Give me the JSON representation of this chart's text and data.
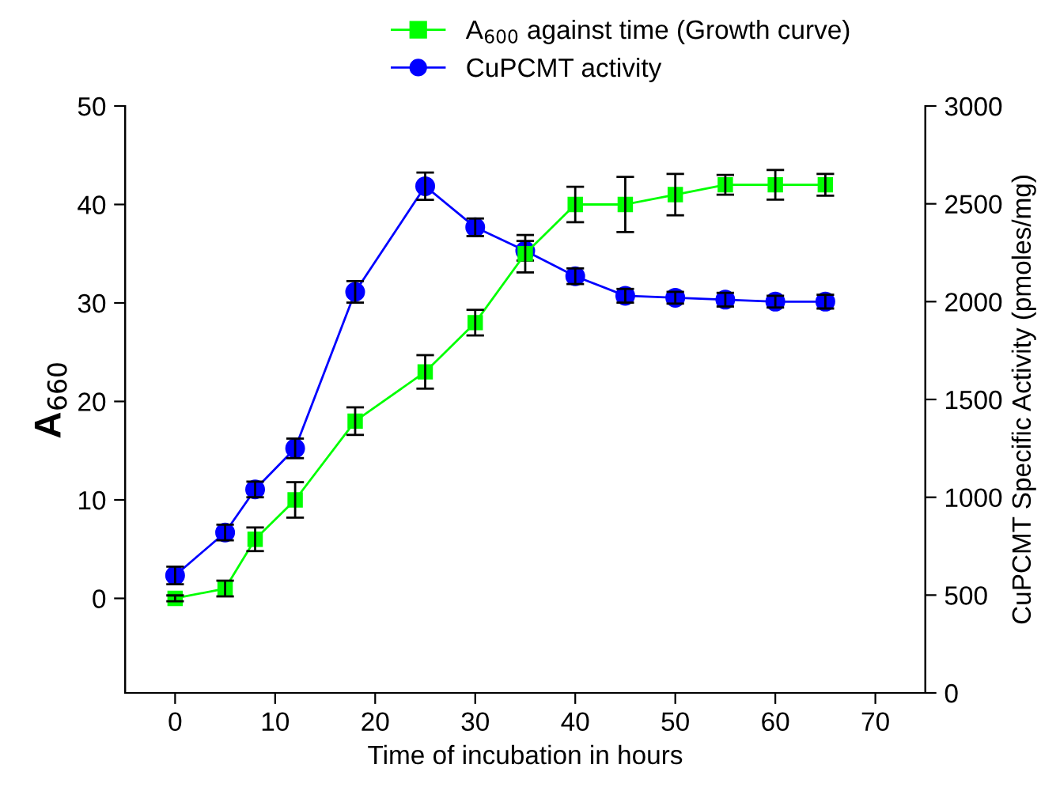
{
  "chart_data": {
    "type": "line",
    "xlabel": "Time of incubation in hours",
    "ylabel": "A$_{660}$",
    "y2label": "CuPCMT Specific Activity (pmoles/mg)",
    "x": [
      0,
      5,
      8,
      12,
      18,
      25,
      30,
      35,
      40,
      45,
      50,
      55,
      60,
      65
    ],
    "series": [
      {
        "name": "A$_{600}$ against time (Growth curve)",
        "color": "#00ff00",
        "marker": "square",
        "axis": "y",
        "values": [
          0,
          1,
          6,
          10,
          18,
          23,
          28,
          35,
          40,
          40,
          41,
          42,
          42,
          42
        ],
        "errors": [
          0.3,
          0.8,
          1.2,
          1.8,
          1.4,
          1.7,
          1.3,
          1.9,
          1.8,
          2.8,
          2.1,
          1.0,
          1.5,
          1.1
        ]
      },
      {
        "name": "CuPCMT activity",
        "color": "#0000ff",
        "marker": "circle",
        "axis": "y2",
        "values": [
          600,
          820,
          1040,
          1250,
          2050,
          2590,
          2380,
          2260,
          2130,
          2030,
          2020,
          2010,
          2000,
          2000
        ],
        "errors": [
          45,
          40,
          40,
          50,
          55,
          70,
          45,
          50,
          40,
          35,
          30,
          35,
          30,
          35
        ]
      }
    ],
    "xlim": [
      -5,
      75
    ],
    "xticks": [
      0,
      10,
      20,
      30,
      40,
      50,
      60,
      70
    ],
    "ylim": [
      -9.6,
      50
    ],
    "yticks": [
      0,
      10,
      20,
      30,
      40,
      50
    ],
    "y2lim": [
      0,
      3000
    ],
    "y2ticks": [
      0,
      500,
      1000,
      1500,
      2000,
      2500,
      3000
    ],
    "grid": false,
    "legend": "top",
    "line_style": "solid"
  }
}
